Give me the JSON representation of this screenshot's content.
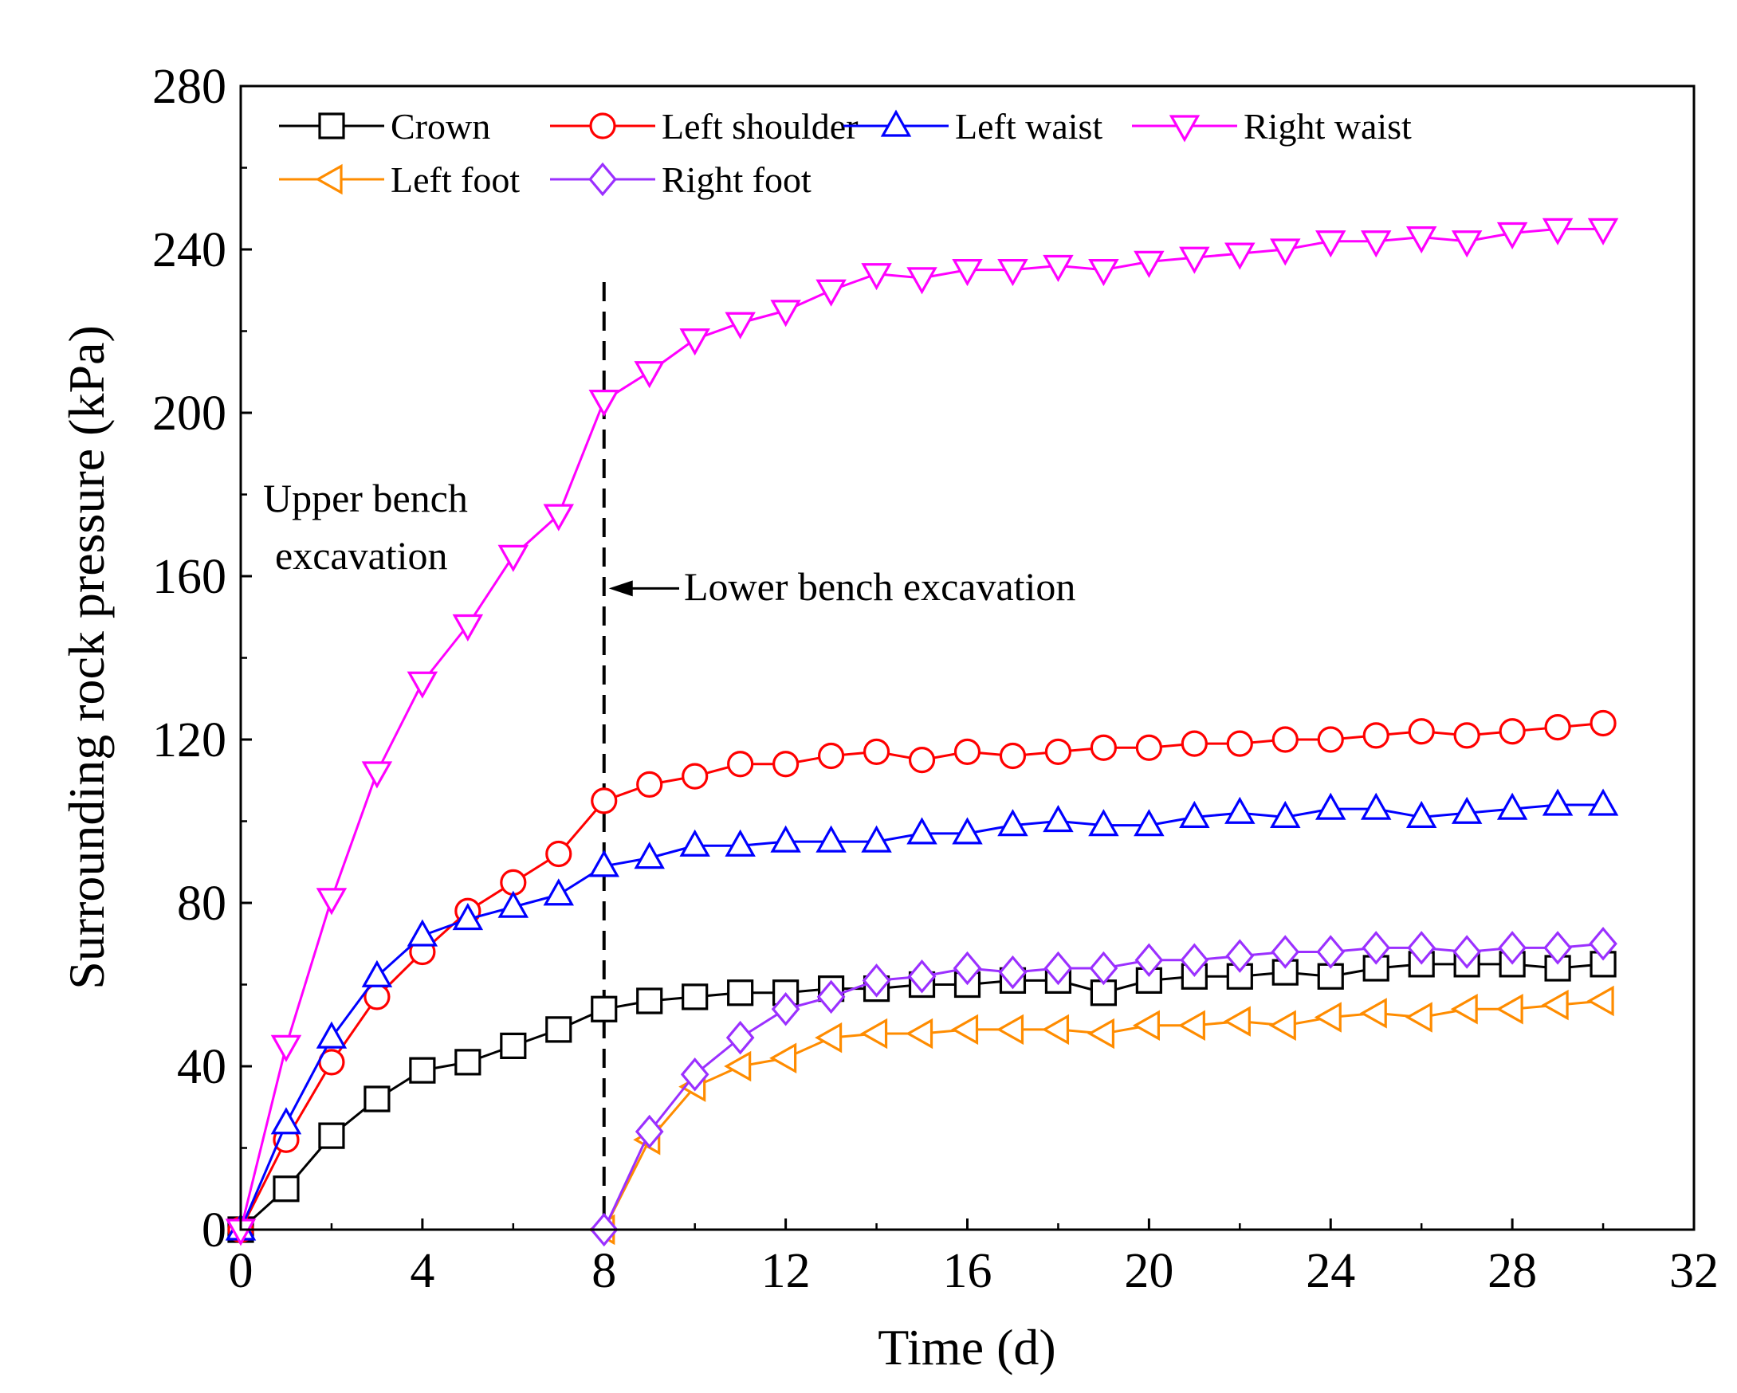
{
  "chart_data": {
    "type": "line",
    "title": "",
    "xlabel": "Time (d)",
    "ylabel": "Surrounding rock pressure (kPa)",
    "xlim": [
      0,
      32
    ],
    "ylim": [
      0,
      280
    ],
    "xticks": [
      0,
      4,
      8,
      12,
      16,
      20,
      24,
      28,
      32
    ],
    "yticks": [
      0,
      40,
      80,
      120,
      160,
      200,
      240,
      280
    ],
    "legend_position": "top-left",
    "grid": false,
    "series": [
      {
        "name": "Crown",
        "color": "#000000",
        "marker": "square",
        "x": [
          0,
          1,
          2,
          3,
          4,
          5,
          6,
          7,
          8,
          9,
          10,
          11,
          12,
          13,
          14,
          15,
          16,
          17,
          18,
          19,
          20,
          21,
          22,
          23,
          24,
          25,
          26,
          27,
          28,
          29,
          30
        ],
        "y": [
          0,
          10,
          23,
          32,
          39,
          41,
          45,
          49,
          54,
          56,
          57,
          58,
          58,
          59,
          59,
          60,
          60,
          61,
          61,
          58,
          61,
          62,
          62,
          63,
          62,
          64,
          65,
          65,
          65,
          64,
          65
        ]
      },
      {
        "name": "Left shoulder",
        "color": "#ff0000",
        "marker": "circle",
        "x": [
          0,
          1,
          2,
          3,
          4,
          5,
          6,
          7,
          8,
          9,
          10,
          11,
          12,
          13,
          14,
          15,
          16,
          17,
          18,
          19,
          20,
          21,
          22,
          23,
          24,
          25,
          26,
          27,
          28,
          29,
          30
        ],
        "y": [
          0,
          22,
          41,
          57,
          68,
          78,
          85,
          92,
          105,
          109,
          111,
          114,
          114,
          116,
          117,
          115,
          117,
          116,
          117,
          118,
          118,
          119,
          119,
          120,
          120,
          121,
          122,
          121,
          122,
          123,
          124
        ]
      },
      {
        "name": "Left waist",
        "color": "#0000ff",
        "marker": "triangle-up",
        "x": [
          0,
          1,
          2,
          3,
          4,
          5,
          6,
          7,
          8,
          9,
          10,
          11,
          12,
          13,
          14,
          15,
          16,
          17,
          18,
          19,
          20,
          21,
          22,
          23,
          24,
          25,
          26,
          27,
          28,
          29,
          30
        ],
        "y": [
          0,
          26,
          47,
          62,
          72,
          76,
          79,
          82,
          89,
          91,
          94,
          94,
          95,
          95,
          95,
          97,
          97,
          99,
          100,
          99,
          99,
          101,
          102,
          101,
          103,
          103,
          101,
          102,
          103,
          104,
          104
        ]
      },
      {
        "name": "Right waist",
        "color": "#ff00ff",
        "marker": "triangle-down",
        "x": [
          0,
          1,
          2,
          3,
          4,
          5,
          6,
          7,
          8,
          9,
          10,
          11,
          12,
          13,
          14,
          15,
          16,
          17,
          18,
          19,
          20,
          21,
          22,
          23,
          24,
          25,
          26,
          27,
          28,
          29,
          30
        ],
        "y": [
          0,
          45,
          81,
          112,
          134,
          148,
          165,
          175,
          203,
          210,
          218,
          222,
          225,
          230,
          234,
          233,
          235,
          235,
          236,
          235,
          237,
          238,
          239,
          240,
          242,
          242,
          243,
          242,
          244,
          245,
          245
        ]
      },
      {
        "name": "Left foot",
        "color": "#ff8c00",
        "marker": "triangle-left",
        "x": [
          8,
          9,
          10,
          11,
          12,
          13,
          14,
          15,
          16,
          17,
          18,
          19,
          20,
          21,
          22,
          23,
          24,
          25,
          26,
          27,
          28,
          29,
          30
        ],
        "y": [
          0,
          22,
          35,
          40,
          42,
          47,
          48,
          48,
          49,
          49,
          49,
          48,
          50,
          50,
          51,
          50,
          52,
          53,
          52,
          54,
          54,
          55,
          56
        ]
      },
      {
        "name": "Right foot",
        "color": "#9b30ff",
        "marker": "diamond",
        "x": [
          8,
          9,
          10,
          11,
          12,
          13,
          14,
          15,
          16,
          17,
          18,
          19,
          20,
          21,
          22,
          23,
          24,
          25,
          26,
          27,
          28,
          29,
          30
        ],
        "y": [
          0,
          24,
          38,
          47,
          54,
          57,
          61,
          62,
          64,
          63,
          64,
          64,
          66,
          66,
          67,
          68,
          68,
          69,
          69,
          68,
          69,
          69,
          70
        ]
      }
    ],
    "vertical_line": {
      "x": 8,
      "y_top": 232,
      "style": "dashed"
    },
    "annotations": [
      {
        "lines": [
          "Upper bench",
          "excavation"
        ]
      },
      {
        "text": "Lower bench excavation",
        "arrow_to_x": 8,
        "y": 157
      }
    ]
  }
}
